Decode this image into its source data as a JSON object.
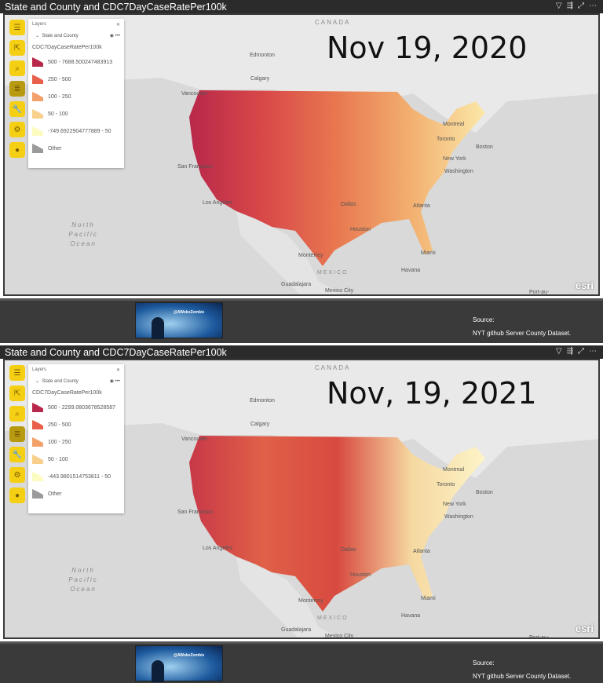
{
  "panels": [
    {
      "title": "State and County and CDC7DayCaseRatePer100k",
      "date": "Nov 19, 2020",
      "legend": {
        "header": "Layers",
        "layer": "State and County",
        "field": "CDC7DayCaseRatePer100k",
        "items": [
          {
            "label": "500 - 7688.500247483913",
            "color": "#b8284a"
          },
          {
            "label": "250 - 500",
            "color": "#e8604a"
          },
          {
            "label": "100 - 250",
            "color": "#f3a06a"
          },
          {
            "label": "50 - 100",
            "color": "#f8d08c"
          },
          {
            "label": "-749.6922904777889 - 50",
            "color": "#fcfcc0"
          },
          {
            "label": "Other",
            "color": "#9a9a9a"
          }
        ]
      }
    },
    {
      "title": "State and County and CDC7DayCaseRatePer100k",
      "date": "Nov, 19, 2021",
      "legend": {
        "header": "Layers",
        "layer": "State and County",
        "field": "CDC7DayCaseRatePer100k",
        "items": [
          {
            "label": "500 - 2299.0803678528587",
            "color": "#b8284a"
          },
          {
            "label": "250 - 500",
            "color": "#e8604a"
          },
          {
            "label": "100 - 250",
            "color": "#f3a06a"
          },
          {
            "label": "50 - 100",
            "color": "#f8d08c"
          },
          {
            "label": "-443.9801514753811 - 50",
            "color": "#fcfcc0"
          },
          {
            "label": "Other",
            "color": "#9a9a9a"
          }
        ]
      }
    }
  ],
  "map_labels": {
    "canada": "CANADA",
    "mexico": "MEXICO",
    "ocean": "North Pacific Ocean",
    "edmonton": "Edmonton",
    "calgary": "Calgary",
    "vancouver": "Vancouver",
    "sf": "San Francisco",
    "la": "Los Angeles",
    "dallas": "Dallas",
    "houston": "Houston",
    "monterrey": "Monterrey",
    "guadalajara": "Guadalajara",
    "mexico_city": "Mexico City",
    "havana": "Havana",
    "miami": "Miami",
    "atlanta": "Atlanta",
    "montreal": "Montreal",
    "toronto": "Toronto",
    "boston": "Boston",
    "new_york": "New York",
    "washington": "Washington",
    "port": "Port-au-",
    "esri": "esri"
  },
  "footer": {
    "banner_text": "@AWokeZombie",
    "source_label": "Source:",
    "source_text": "NYT github Server County Dataset."
  }
}
